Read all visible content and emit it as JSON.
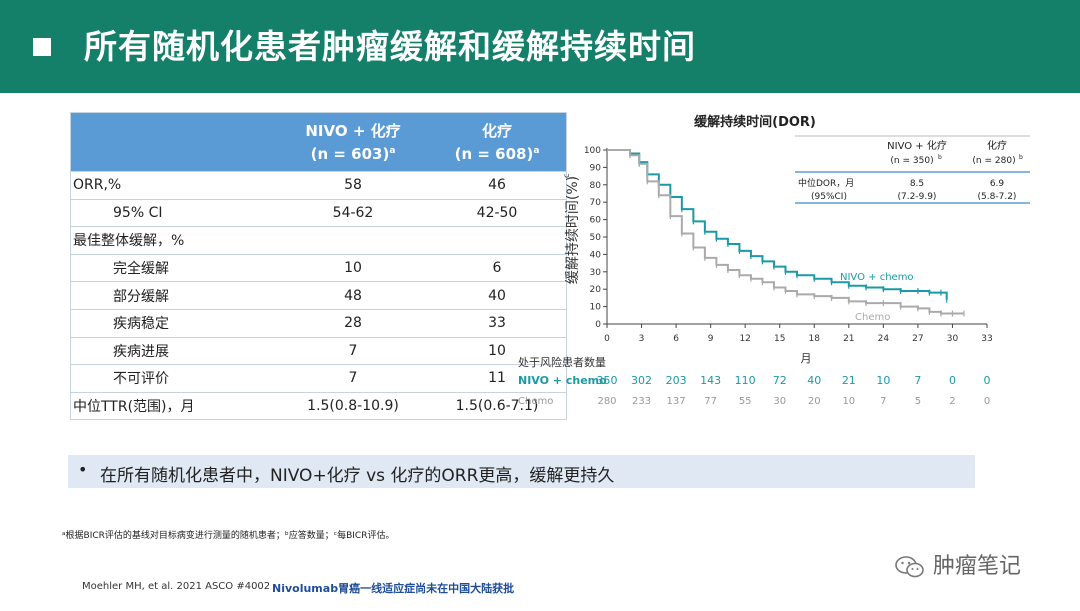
{
  "header": {
    "title": "所有随机化患者肿瘤缓解和缓解持续时间"
  },
  "table": {
    "col1_line1": "NIVO + 化疗",
    "col1_line2": "(n = 603)",
    "col1_sup": "a",
    "col2_line1": "化疗",
    "col2_line2": "(n = 608)",
    "col2_sup": "a",
    "rows": [
      {
        "label": "ORR,%",
        "v1": "58",
        "v2": "46"
      },
      {
        "label": "95% CI",
        "v1": "54-62",
        "v2": "42-50"
      },
      {
        "label": "最佳整体缓解，%",
        "v1": "",
        "v2": ""
      },
      {
        "label": "完全缓解",
        "v1": "10",
        "v2": "6"
      },
      {
        "label": "部分缓解",
        "v1": "48",
        "v2": "40"
      },
      {
        "label": "疾病稳定",
        "v1": "28",
        "v2": "33"
      },
      {
        "label": "疾病进展",
        "v1": "7",
        "v2": "10"
      },
      {
        "label": "不可评价",
        "v1": "7",
        "v2": "11"
      },
      {
        "label": "中位TTR(范围)，月",
        "v1": "1.5(0.8-10.9)",
        "v2": "1.5(0.6-7.1)"
      }
    ]
  },
  "chart_data": {
    "type": "line",
    "title": "缓解持续时间(DOR)",
    "ylabel": "缓解持续时间(%)",
    "ylabel_sup": "c",
    "xlabel": "月",
    "xlim": [
      0,
      33
    ],
    "ylim": [
      0,
      100
    ],
    "x_ticks": [
      0,
      3,
      6,
      9,
      12,
      15,
      18,
      21,
      24,
      27,
      30,
      33
    ],
    "y_ticks": [
      0,
      10,
      20,
      30,
      40,
      50,
      60,
      70,
      80,
      90,
      100
    ],
    "series": [
      {
        "name": "NIVO + chemo",
        "color": "#1a9aa6",
        "x": [
          0,
          1,
          2,
          2.8,
          3.5,
          4.5,
          5.5,
          6.5,
          7.5,
          8.5,
          9.5,
          10.5,
          11.5,
          12.5,
          13.5,
          14.5,
          15.5,
          16.5,
          18,
          19.5,
          21,
          22.5,
          24,
          25.5,
          27,
          28,
          29,
          29.5
        ],
        "y": [
          100,
          100,
          98,
          93,
          86,
          80,
          73,
          66,
          59,
          53,
          49,
          46,
          42,
          39,
          36,
          33,
          30,
          28,
          26,
          24,
          22,
          21,
          20,
          19,
          19,
          18,
          18,
          14
        ]
      },
      {
        "name": "Chemo",
        "color": "#aaaaaa",
        "x": [
          0,
          1,
          2,
          2.8,
          3.5,
          4.5,
          5.5,
          6.5,
          7.5,
          8.5,
          9.5,
          10.5,
          11.5,
          12.5,
          13.5,
          14.5,
          15.5,
          16.5,
          18,
          19.5,
          21,
          22.5,
          24,
          25.5,
          27,
          28,
          29,
          30,
          31
        ],
        "y": [
          100,
          100,
          97,
          92,
          82,
          74,
          62,
          52,
          44,
          38,
          34,
          31,
          28,
          26,
          24,
          21,
          19,
          17,
          16,
          15,
          13,
          12,
          12,
          10,
          9,
          7,
          6,
          6,
          6
        ]
      }
    ],
    "legend_labels": {
      "nivo": "NIVO + chemo",
      "chemo": "Chemo"
    },
    "inset": {
      "col1_line1": "NIVO + 化疗",
      "col1_line2": "(n = 350)",
      "col1_sup": "b",
      "col2_line1": "化疗",
      "col2_line2": "(n = 280)",
      "col2_sup": "b",
      "row_label1": "中位DOR，月",
      "row_label2": "(95%CI)",
      "v1_main": "8.5",
      "v1_ci": "(7.2-9.9)",
      "v2_main": "6.9",
      "v2_ci": "(5.8-7.2)"
    },
    "risk": {
      "title": "处于风险患者数量",
      "nivo_label": "NIVO + chemo",
      "chemo_label": "Chemo",
      "nivo": [
        "350",
        "302",
        "203",
        "143",
        "110",
        "72",
        "40",
        "21",
        "10",
        "7",
        "0",
        "0"
      ],
      "chemo": [
        "280",
        "233",
        "137",
        "77",
        "55",
        "30",
        "20",
        "10",
        "7",
        "5",
        "2",
        "0"
      ]
    }
  },
  "bullet": {
    "text": "在所有随机化患者中，NIVO+化疗 vs 化疗的ORR更高，缓解更持久"
  },
  "footnote": "ᵃ根据BICR评估的基线对目标病变进行测量的随机患者；ᵇ应答数量；ᶜ每BICR评估。",
  "reference": "Moehler MH, et al. 2021 ASCO #4002",
  "reference_note": "Nivolumab胃癌一线适应症尚未在中国大陆获批",
  "watermark": "肿瘤笔记",
  "colors": {
    "header": "#15806a",
    "table_header": "#5b9bd5",
    "nivo": "#1a9aa6",
    "chemo": "#aaaaaa"
  }
}
